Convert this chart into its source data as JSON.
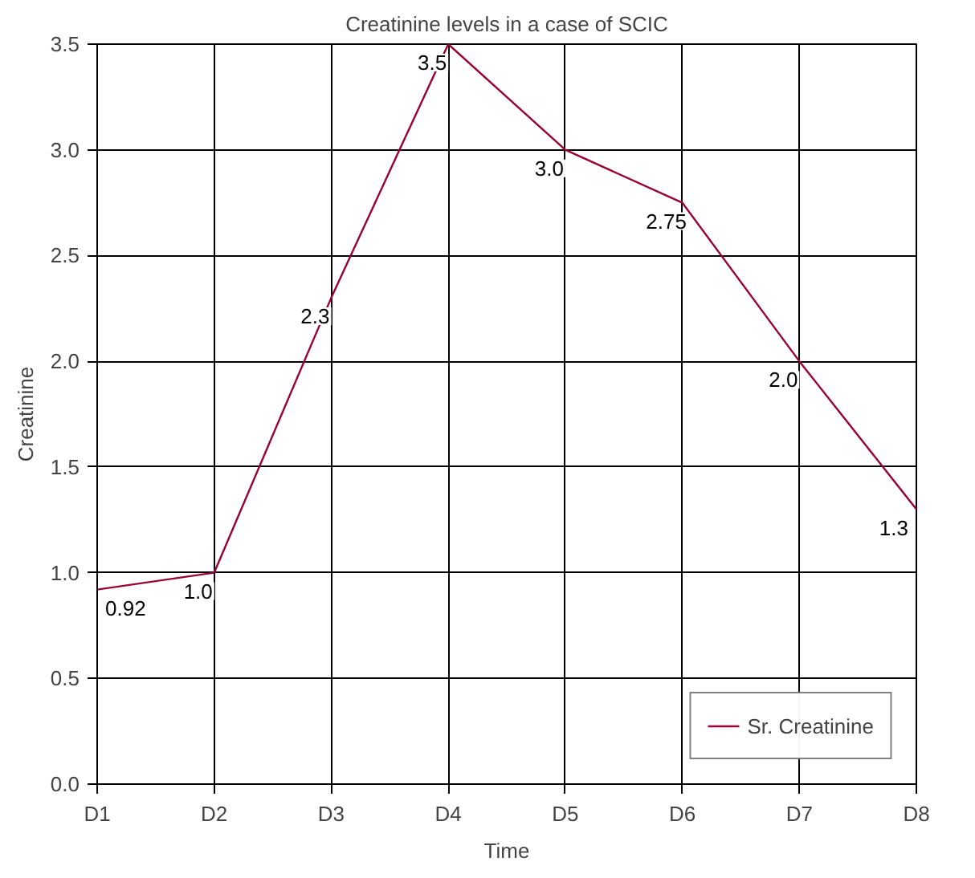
{
  "chart_data": {
    "type": "line",
    "title": "Creatinine levels in a case of SCIC",
    "xlabel": "Time",
    "ylabel": "Creatinine",
    "categories": [
      "D1",
      "D2",
      "D3",
      "D4",
      "D5",
      "D6",
      "D7",
      "D8"
    ],
    "series": [
      {
        "name": "Sr. Creatinine",
        "color": "#990033",
        "values": [
          0.92,
          1.0,
          2.3,
          3.5,
          3.0,
          2.75,
          2.0,
          1.3
        ],
        "value_labels": [
          "0.92",
          "1.0",
          "2.3",
          "3.5",
          "3.0",
          "2.75",
          "2.0",
          "1.3"
        ]
      }
    ],
    "ylim": [
      0,
      3.5
    ],
    "yticks": [
      {
        "value": 0,
        "label": "0.0"
      },
      {
        "value": 0.5,
        "label": "0.5"
      },
      {
        "value": 1,
        "label": "1.0"
      },
      {
        "value": 1.5,
        "label": "1.5"
      },
      {
        "value": 2,
        "label": "2.0"
      },
      {
        "value": 2.5,
        "label": "2.5"
      },
      {
        "value": 3,
        "label": "3.0"
      },
      {
        "value": 3.5,
        "label": "3.5"
      }
    ],
    "grid": true,
    "legend": "bottom right",
    "marker": "none",
    "line_style": "solid"
  }
}
